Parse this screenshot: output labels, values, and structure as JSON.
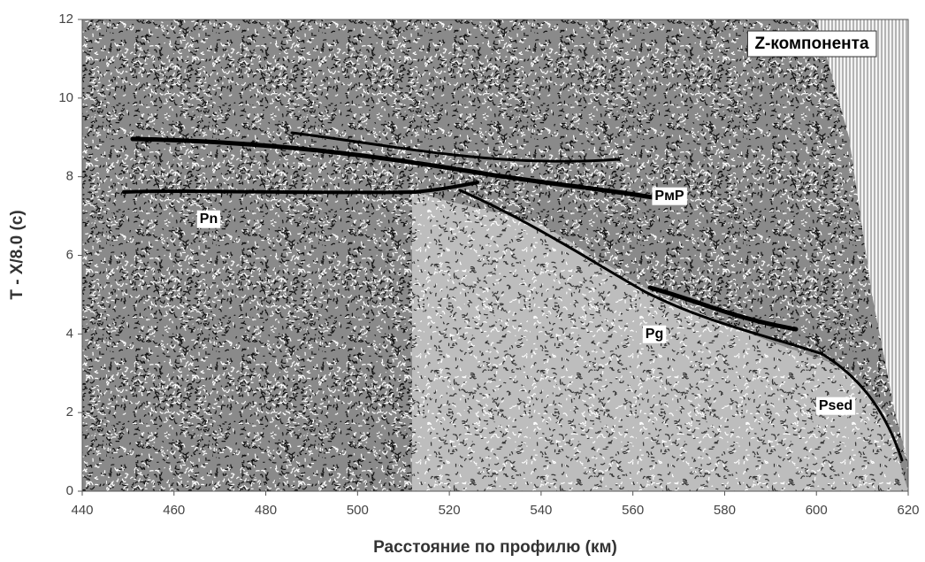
{
  "chart_data": {
    "type": "seismic-section",
    "xlabel": "Расстояние по профилю (км)",
    "ylabel": "T - X/8.0 (c)",
    "xlim": [
      440,
      620
    ],
    "xticks": [
      440,
      460,
      480,
      500,
      520,
      540,
      560,
      580,
      600,
      620
    ],
    "ylim": [
      0,
      12
    ],
    "yticks": [
      0,
      2,
      4,
      6,
      8,
      10,
      12
    ],
    "annotations": [
      "Z-компонента",
      "Pn",
      "PмP",
      "Pg",
      "Psed"
    ]
  }
}
